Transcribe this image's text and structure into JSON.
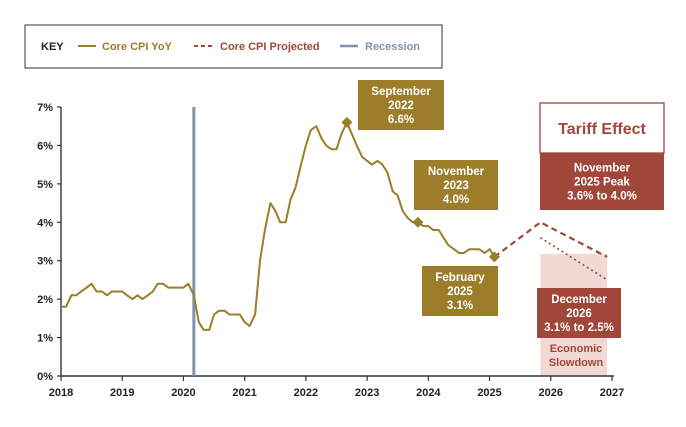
{
  "legend": {
    "title": "KEY",
    "items": [
      {
        "label": "Core CPI YoY",
        "color": "#9b7d2a",
        "style": "solid"
      },
      {
        "label": "Core CPI Projected",
        "color": "#a0473a",
        "style": "dashed"
      },
      {
        "label": "Recession",
        "color": "#7e94ac",
        "style": "solid"
      }
    ]
  },
  "chart_data": {
    "type": "line",
    "title": "",
    "xlabel": "",
    "ylabel": "",
    "xlim": [
      2018,
      2027
    ],
    "ylim": [
      0,
      7
    ],
    "x_ticks": [
      "2018",
      "2019",
      "2020",
      "2021",
      "2022",
      "2023",
      "2024",
      "2025",
      "2026",
      "2027"
    ],
    "y_ticks": [
      "0%",
      "1%",
      "2%",
      "3%",
      "4%",
      "5%",
      "6%",
      "7%"
    ],
    "grid": false,
    "series": [
      {
        "name": "Core CPI YoY",
        "color": "#9b7d2a",
        "style": "solid",
        "x": [
          2018.0,
          2018.08,
          2018.17,
          2018.25,
          2018.33,
          2018.42,
          2018.5,
          2018.58,
          2018.67,
          2018.75,
          2018.83,
          2018.92,
          2019.0,
          2019.08,
          2019.17,
          2019.25,
          2019.33,
          2019.42,
          2019.5,
          2019.58,
          2019.67,
          2019.75,
          2019.83,
          2019.92,
          2020.0,
          2020.08,
          2020.17,
          2020.25,
          2020.33,
          2020.42,
          2020.5,
          2020.58,
          2020.67,
          2020.75,
          2020.83,
          2020.92,
          2021.0,
          2021.08,
          2021.17,
          2021.25,
          2021.33,
          2021.42,
          2021.5,
          2021.58,
          2021.67,
          2021.75,
          2021.83,
          2021.92,
          2022.0,
          2022.08,
          2022.17,
          2022.25,
          2022.33,
          2022.42,
          2022.5,
          2022.58,
          2022.67,
          2022.75,
          2022.83,
          2022.92,
          2023.0,
          2023.08,
          2023.17,
          2023.25,
          2023.33,
          2023.42,
          2023.5,
          2023.58,
          2023.67,
          2023.75,
          2023.83,
          2023.92,
          2024.0,
          2024.08,
          2024.17,
          2024.25,
          2024.33,
          2024.42,
          2024.5,
          2024.58,
          2024.67,
          2024.75,
          2024.83,
          2024.92,
          2025.0,
          2025.08
        ],
        "values": [
          1.8,
          1.8,
          2.1,
          2.1,
          2.2,
          2.3,
          2.4,
          2.2,
          2.2,
          2.1,
          2.2,
          2.2,
          2.2,
          2.1,
          2.0,
          2.1,
          2.0,
          2.1,
          2.2,
          2.4,
          2.4,
          2.3,
          2.3,
          2.3,
          2.3,
          2.4,
          2.1,
          1.4,
          1.2,
          1.2,
          1.6,
          1.7,
          1.7,
          1.6,
          1.6,
          1.6,
          1.4,
          1.3,
          1.6,
          3.0,
          3.8,
          4.5,
          4.3,
          4.0,
          4.0,
          4.6,
          4.9,
          5.5,
          6.0,
          6.4,
          6.5,
          6.2,
          6.0,
          5.9,
          5.9,
          6.3,
          6.6,
          6.3,
          6.0,
          5.7,
          5.6,
          5.5,
          5.6,
          5.5,
          5.3,
          4.8,
          4.7,
          4.3,
          4.1,
          4.0,
          4.0,
          3.9,
          3.9,
          3.8,
          3.8,
          3.6,
          3.4,
          3.3,
          3.2,
          3.2,
          3.3,
          3.3,
          3.3,
          3.2,
          3.3,
          3.1
        ]
      },
      {
        "name": "Core CPI Projected",
        "color": "#a0473a",
        "style": "dashed",
        "x": [
          2025.08,
          2025.83,
          2026.92
        ],
        "values": [
          3.1,
          4.0,
          3.1
        ]
      },
      {
        "name": "",
        "color": "#a0473a",
        "style": "dotted",
        "x": [
          2025.83,
          2026.92
        ],
        "values": [
          3.6,
          2.5
        ]
      }
    ],
    "recession_x": 2020.17,
    "tariff_band": {
      "x0": 2025.83,
      "x1": 2026.92,
      "y_top": 3.1
    },
    "annotations": [
      {
        "lines": [
          "September",
          "2022",
          "6.6%"
        ],
        "x": 2022.67,
        "y": 6.6,
        "color": "#9b7d2a",
        "marker": "diamond"
      },
      {
        "lines": [
          "November",
          "2023",
          "4.0%"
        ],
        "x": 2023.83,
        "y": 4.0,
        "color": "#9b7d2a",
        "marker": "diamond"
      },
      {
        "lines": [
          "February",
          "2025",
          "3.1%"
        ],
        "x": 2025.08,
        "y": 3.1,
        "color": "#9b7d2a",
        "marker": "diamond"
      },
      {
        "lines": [
          "November",
          "2025 Peak",
          "3.6% to 4.0%"
        ],
        "color": "#a0473a"
      },
      {
        "lines": [
          "December",
          "2026",
          "3.1% to 2.5%"
        ],
        "color": "#a0473a"
      }
    ],
    "tariff_label": "Tariff Effect",
    "slowdown_label": [
      "Economic",
      "Slowdown"
    ]
  }
}
